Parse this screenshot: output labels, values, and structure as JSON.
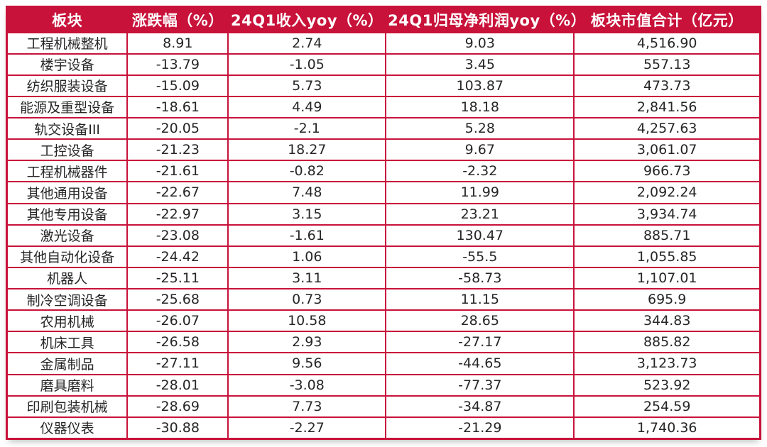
{
  "colors": {
    "accent": "#C8123A",
    "header_text": "#FFFFFF",
    "body_text": "#262626",
    "row_background": "#FFFFFF",
    "page_background": "#FFFFFF"
  },
  "chart_data": {
    "type": "table",
    "title": "",
    "columns": [
      "板块",
      "涨跌幅（%）",
      "24Q1收入yoy（%）",
      "24Q1归母净利润yoy（%）",
      "板块市值合计（亿元）"
    ],
    "column_widths_pct": [
      16.0,
      13.4,
      20.9,
      25.0,
      24.7
    ],
    "rows": [
      [
        "工程机械整机",
        "8.91",
        "2.74",
        "9.03",
        "4,516.90"
      ],
      [
        "楼宇设备",
        "-13.79",
        "-1.05",
        "3.45",
        "557.13"
      ],
      [
        "纺织服装设备",
        "-15.09",
        "5.73",
        "103.87",
        "473.73"
      ],
      [
        "能源及重型设备",
        "-18.61",
        "4.49",
        "18.18",
        "2,841.56"
      ],
      [
        "轨交设备III",
        "-20.05",
        "-2.1",
        "5.28",
        "4,257.63"
      ],
      [
        "工控设备",
        "-21.23",
        "18.27",
        "9.67",
        "3,061.07"
      ],
      [
        "工程机械器件",
        "-21.61",
        "-0.82",
        "-2.32",
        "966.73"
      ],
      [
        "其他通用设备",
        "-22.67",
        "7.48",
        "11.99",
        "2,092.24"
      ],
      [
        "其他专用设备",
        "-22.97",
        "3.15",
        "23.21",
        "3,934.74"
      ],
      [
        "激光设备",
        "-23.08",
        "-1.61",
        "130.47",
        "885.71"
      ],
      [
        "其他自动化设备",
        "-24.42",
        "1.06",
        "-55.5",
        "1,055.85"
      ],
      [
        "机器人",
        "-25.11",
        "3.11",
        "-58.73",
        "1,107.01"
      ],
      [
        "制冷空调设备",
        "-25.68",
        "0.73",
        "11.15",
        "695.9"
      ],
      [
        "农用机械",
        "-26.07",
        "10.58",
        "28.65",
        "344.83"
      ],
      [
        "机床工具",
        "-26.58",
        "2.93",
        "-27.17",
        "885.82"
      ],
      [
        "金属制品",
        "-27.11",
        "9.56",
        "-44.65",
        "3,123.73"
      ],
      [
        "磨具磨料",
        "-28.01",
        "-3.08",
        "-77.37",
        "523.92"
      ],
      [
        "印刷包装机械",
        "-28.69",
        "7.73",
        "-34.87",
        "254.59"
      ],
      [
        "仪器仪表",
        "-30.88",
        "-2.27",
        "-21.29",
        "1,740.36"
      ]
    ]
  }
}
